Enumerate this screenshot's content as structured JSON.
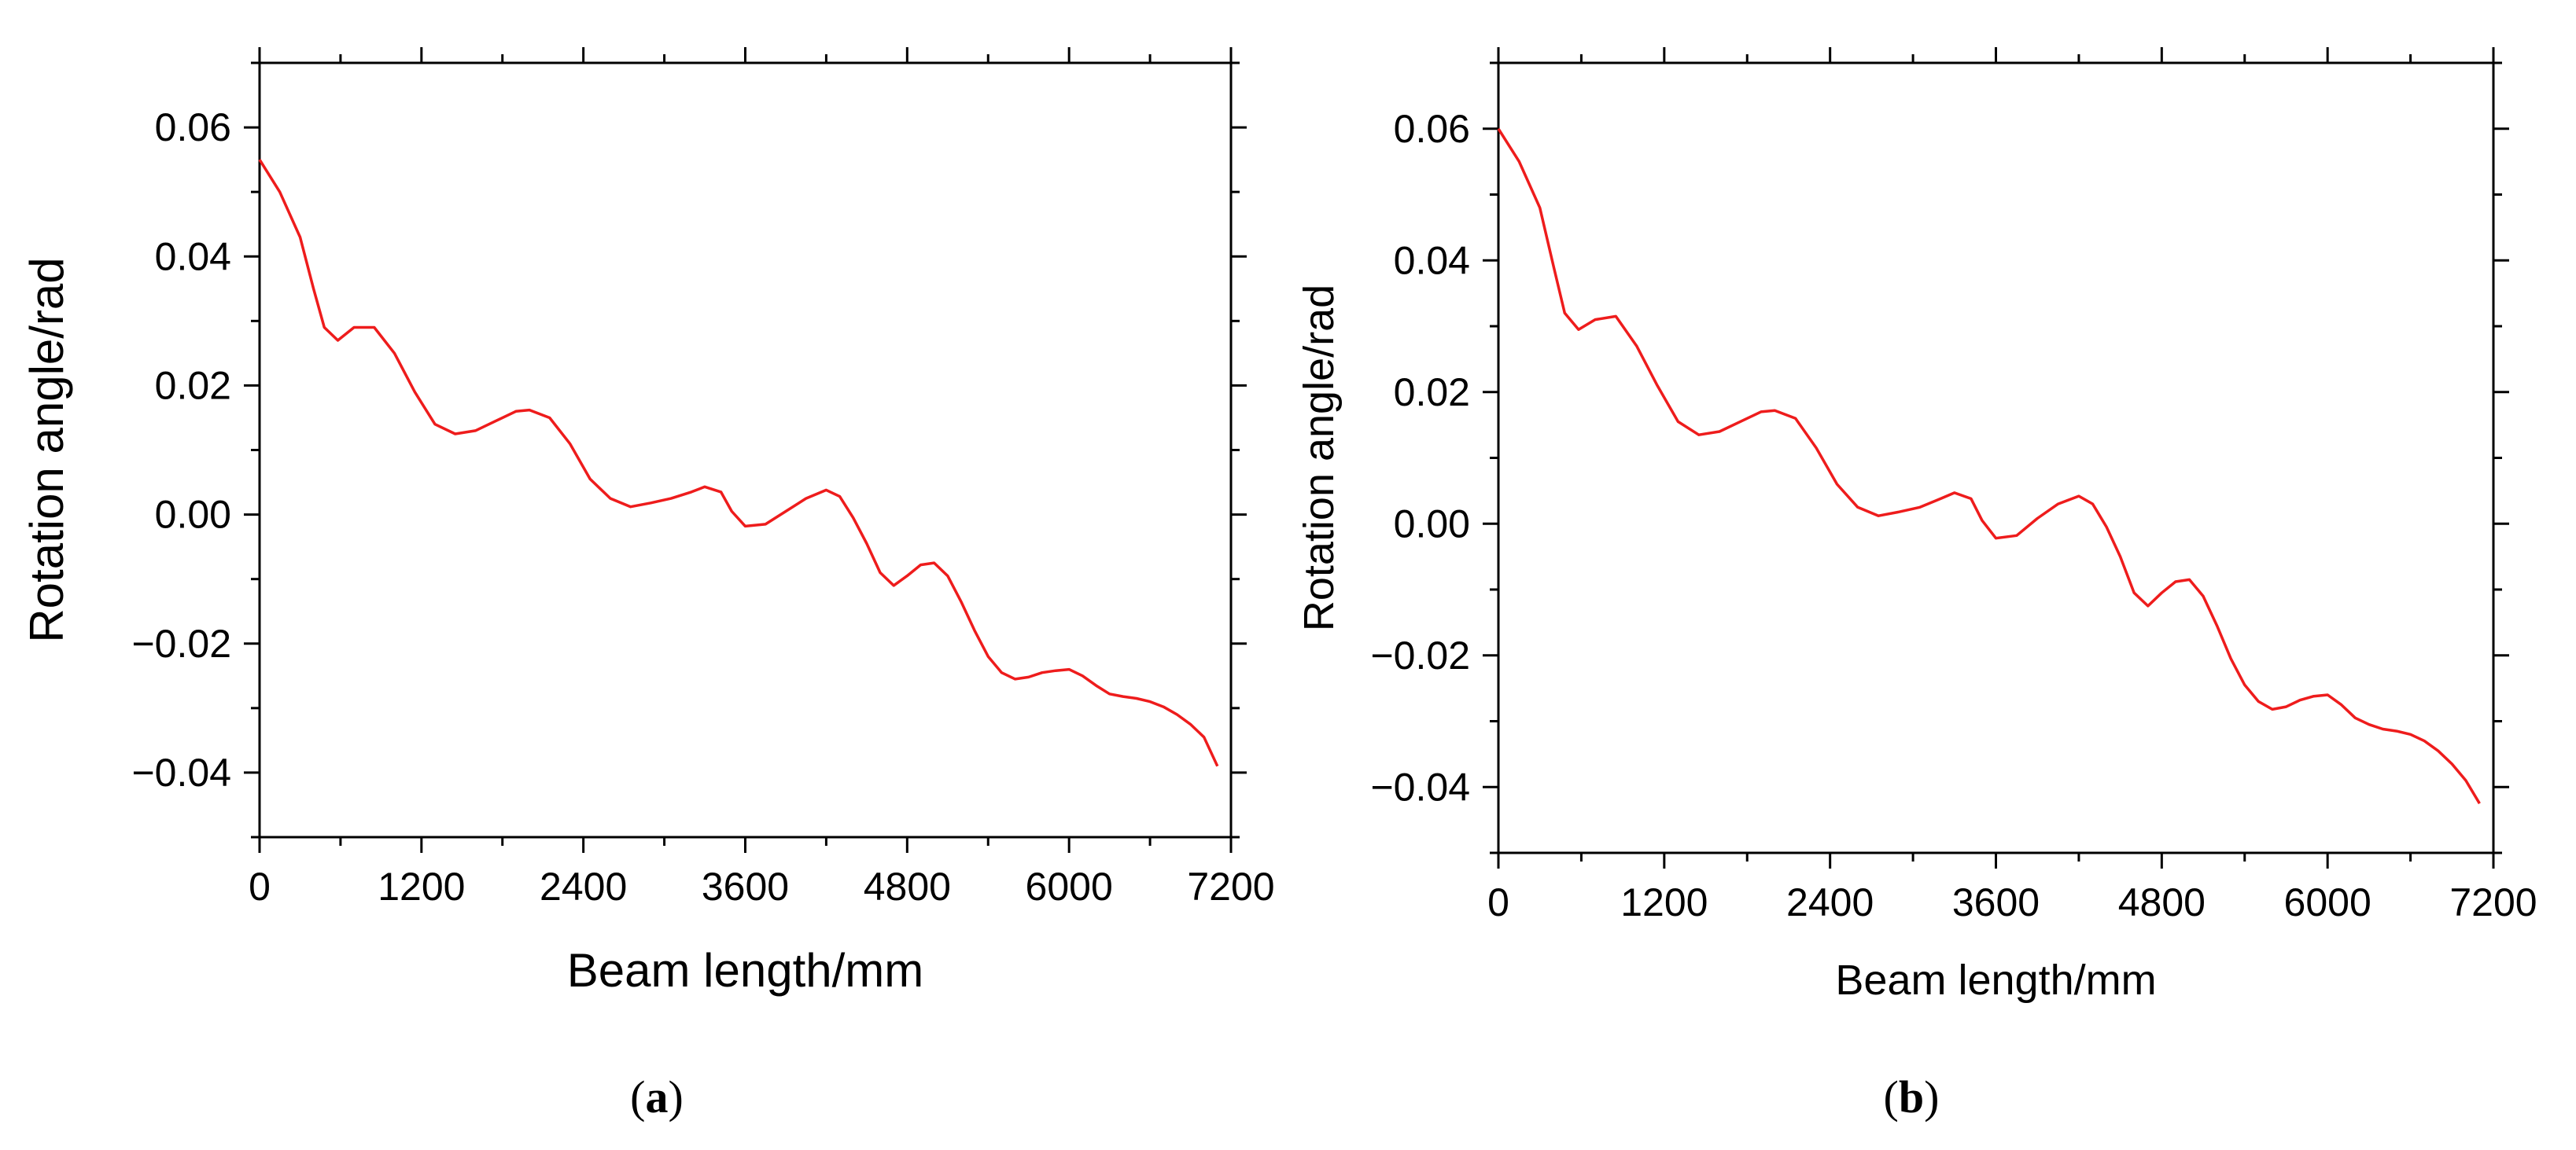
{
  "chart_data": [
    {
      "type": "line",
      "panel_label": "a",
      "title": "",
      "xlabel": "Beam length/mm",
      "ylabel": "Rotation angle/rad",
      "xlim": [
        0,
        7200
      ],
      "ylim": [
        -0.05,
        0.07
      ],
      "xticks": [
        0,
        1200,
        2400,
        3600,
        4800,
        6000,
        7200
      ],
      "xtick_labels": [
        "0",
        "1200",
        "2400",
        "3600",
        "4800",
        "6000",
        "7200"
      ],
      "yticks": [
        -0.04,
        -0.02,
        0.0,
        0.02,
        0.04,
        0.06
      ],
      "ytick_labels": [
        "−0.04",
        "−0.02",
        "0.00",
        "0.02",
        "0.04",
        "0.06"
      ],
      "grid": false,
      "line_color": "#ee1c1c",
      "series": [
        {
          "name": "Rotation angle",
          "x": [
            0,
            150,
            300,
            400,
            480,
            580,
            700,
            850,
            1000,
            1150,
            1300,
            1450,
            1600,
            1750,
            1900,
            2000,
            2150,
            2300,
            2450,
            2600,
            2750,
            2900,
            3050,
            3200,
            3300,
            3420,
            3500,
            3600,
            3750,
            3900,
            4050,
            4200,
            4300,
            4400,
            4500,
            4600,
            4700,
            4800,
            4900,
            5000,
            5100,
            5200,
            5300,
            5400,
            5500,
            5600,
            5700,
            5800,
            5900,
            6000,
            6100,
            6200,
            6300,
            6400,
            6500,
            6600,
            6700,
            6800,
            6900,
            7000,
            7100
          ],
          "y": [
            0.055,
            0.05,
            0.043,
            0.035,
            0.029,
            0.027,
            0.029,
            0.029,
            0.025,
            0.019,
            0.014,
            0.0125,
            0.013,
            0.0145,
            0.016,
            0.0162,
            0.015,
            0.011,
            0.0055,
            0.0025,
            0.0012,
            0.0018,
            0.0025,
            0.0035,
            0.0043,
            0.0035,
            0.0005,
            -0.0018,
            -0.0015,
            0.0005,
            0.0025,
            0.0038,
            0.0028,
            -0.0005,
            -0.0045,
            -0.009,
            -0.011,
            -0.0095,
            -0.0078,
            -0.0075,
            -0.0095,
            -0.0135,
            -0.018,
            -0.022,
            -0.0245,
            -0.0255,
            -0.0252,
            -0.0245,
            -0.0242,
            -0.024,
            -0.025,
            -0.0265,
            -0.0278,
            -0.0282,
            -0.0285,
            -0.029,
            -0.0298,
            -0.031,
            -0.0325,
            -0.0345,
            -0.039
          ]
        }
      ]
    },
    {
      "type": "line",
      "panel_label": "b",
      "title": "",
      "xlabel": "Beam length/mm",
      "ylabel": "Rotation angle/rad",
      "xlim": [
        0,
        7200
      ],
      "ylim": [
        -0.05,
        0.07
      ],
      "xticks": [
        0,
        1200,
        2400,
        3600,
        4800,
        6000,
        7200
      ],
      "xtick_labels": [
        "0",
        "1200",
        "2400",
        "3600",
        "4800",
        "6000",
        "7200"
      ],
      "yticks": [
        -0.04,
        -0.02,
        0.0,
        0.02,
        0.04,
        0.06
      ],
      "ytick_labels": [
        "−0.04",
        "−0.02",
        "0.00",
        "0.02",
        "0.04",
        "0.06"
      ],
      "grid": false,
      "line_color": "#ee1c1c",
      "series": [
        {
          "name": "Rotation angle",
          "x": [
            0,
            150,
            300,
            400,
            480,
            580,
            700,
            850,
            1000,
            1150,
            1300,
            1450,
            1600,
            1750,
            1900,
            2000,
            2150,
            2300,
            2450,
            2600,
            2750,
            2900,
            3050,
            3200,
            3300,
            3420,
            3500,
            3600,
            3750,
            3900,
            4050,
            4200,
            4300,
            4400,
            4500,
            4600,
            4700,
            4800,
            4900,
            5000,
            5100,
            5200,
            5300,
            5400,
            5500,
            5600,
            5700,
            5800,
            5900,
            6000,
            6100,
            6200,
            6300,
            6400,
            6500,
            6600,
            6700,
            6800,
            6900,
            7000,
            7100
          ],
          "y": [
            0.06,
            0.055,
            0.048,
            0.039,
            0.032,
            0.0295,
            0.031,
            0.0315,
            0.027,
            0.021,
            0.0155,
            0.0135,
            0.014,
            0.0155,
            0.017,
            0.0172,
            0.016,
            0.0115,
            0.006,
            0.0025,
            0.0012,
            0.0018,
            0.0025,
            0.0038,
            0.0047,
            0.0038,
            0.0005,
            -0.0022,
            -0.0018,
            0.0008,
            0.003,
            0.0042,
            0.003,
            -0.0005,
            -0.005,
            -0.0105,
            -0.0125,
            -0.0105,
            -0.0088,
            -0.0085,
            -0.011,
            -0.0155,
            -0.0205,
            -0.0245,
            -0.027,
            -0.0282,
            -0.0278,
            -0.0268,
            -0.0262,
            -0.026,
            -0.0275,
            -0.0295,
            -0.0305,
            -0.0312,
            -0.0315,
            -0.032,
            -0.033,
            -0.0345,
            -0.0365,
            -0.039,
            -0.0425
          ]
        }
      ]
    }
  ]
}
